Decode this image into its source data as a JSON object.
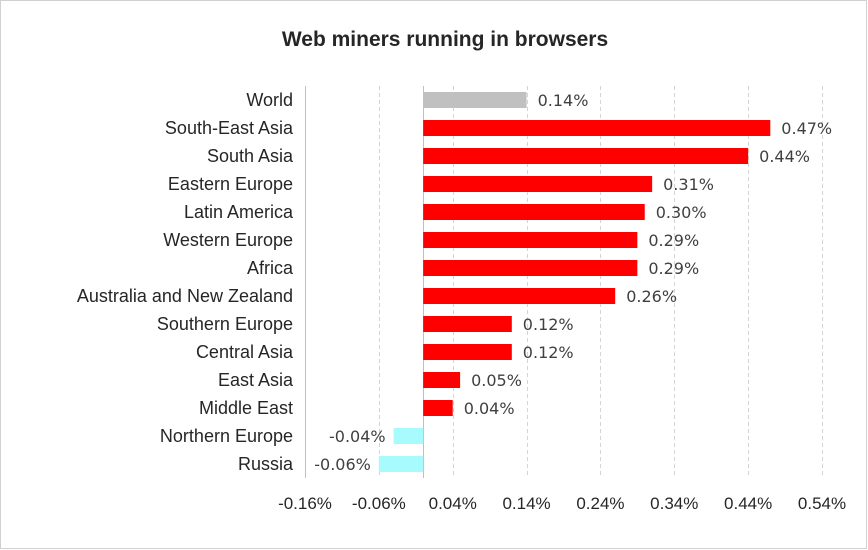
{
  "chart_data": {
    "type": "bar",
    "orientation": "horizontal",
    "title": "Web miners running in browsers",
    "xlabel": "",
    "ylabel": "",
    "categories": [
      "World",
      "South-East Asia",
      "South Asia",
      "Eastern Europe",
      "Latin America",
      "Western Europe",
      "Africa",
      "Australia and New Zealand",
      "Southern Europe",
      "Central Asia",
      "East Asia",
      "Middle East",
      "Northern Europe",
      "Russia"
    ],
    "values": [
      0.14,
      0.47,
      0.44,
      0.31,
      0.3,
      0.29,
      0.29,
      0.26,
      0.12,
      0.12,
      0.05,
      0.04,
      -0.04,
      -0.06
    ],
    "value_labels": [
      "0.14%",
      "0.47%",
      "0.44%",
      "0.31%",
      "0.30%",
      "0.29%",
      "0.29%",
      "0.26%",
      "0.12%",
      "0.12%",
      "0.05%",
      "0.04%",
      "-0.04%",
      "-0.06%"
    ],
    "xlim": [
      -0.16,
      0.54
    ],
    "xticks": [
      -0.16,
      -0.06,
      0.04,
      0.14,
      0.24,
      0.34,
      0.44,
      0.54
    ],
    "xtick_labels": [
      "-0.16%",
      "-0.06%",
      "0.04%",
      "0.14%",
      "0.24%",
      "0.34%",
      "0.44%",
      "0.54%"
    ],
    "grid": "vertical dashed",
    "legend": "none",
    "colors": {
      "highlight": "#c0c0c0",
      "positive": "#ff0000",
      "negative": "#a8fbfc"
    },
    "bar_colors": [
      "#c0c0c0",
      "#ff0000",
      "#ff0000",
      "#ff0000",
      "#ff0000",
      "#ff0000",
      "#ff0000",
      "#ff0000",
      "#ff0000",
      "#ff0000",
      "#ff0000",
      "#ff0000",
      "#a8fbfc",
      "#a8fbfc"
    ]
  }
}
